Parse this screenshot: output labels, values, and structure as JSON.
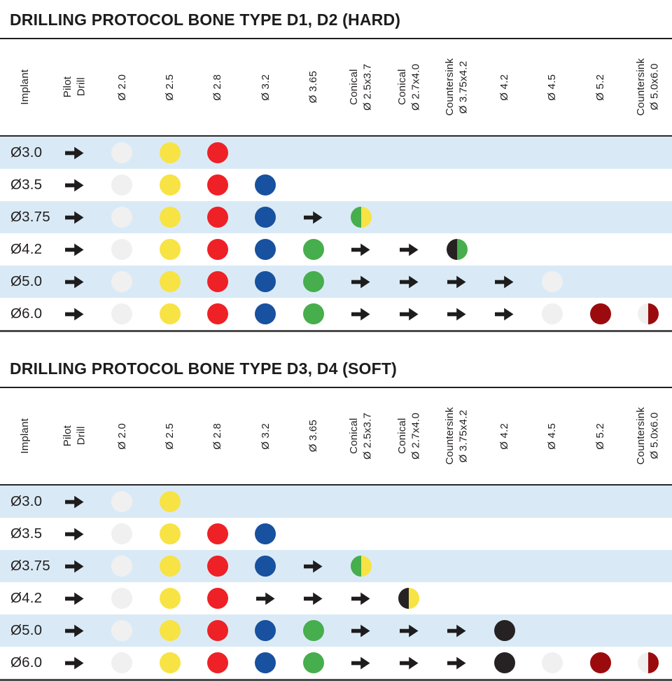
{
  "tables": [
    {
      "id": "hard",
      "title": "DRILLING PROTOCOL BONE TYPE D1, D2 (HARD)",
      "columns": [
        "Implant",
        "Pilot\nDrill",
        "Ø 2.0",
        "Ø 2.5",
        "Ø 2.8",
        "Ø 3.2",
        "Ø 3.65",
        "Conical\nØ 2.5x3.7",
        "Conical\nØ 2.7x4.0",
        "Countersink\nØ 3.75x4.2",
        "Ø 4.2",
        "Ø 4.5",
        "Ø 5.2",
        "Countersink\nØ 5.0x6.0"
      ],
      "rows": [
        {
          "implant": "Ø3.0",
          "cells": [
            "arrow",
            "white",
            "yellow",
            "red",
            "",
            "",
            "",
            "",
            "",
            "",
            "",
            "",
            ""
          ]
        },
        {
          "implant": "Ø3.5",
          "cells": [
            "arrow",
            "white",
            "yellow",
            "red",
            "blue",
            "",
            "",
            "",
            "",
            "",
            "",
            "",
            ""
          ]
        },
        {
          "implant": "Ø3.75",
          "cells": [
            "arrow",
            "white",
            "yellow",
            "red",
            "blue",
            "arrow",
            "green/yellow",
            "",
            "",
            "",
            "",
            "",
            ""
          ]
        },
        {
          "implant": "Ø4.2",
          "cells": [
            "arrow",
            "white",
            "yellow",
            "red",
            "blue",
            "green",
            "arrow",
            "arrow",
            "black/green",
            "",
            "",
            "",
            ""
          ]
        },
        {
          "implant": "Ø5.0",
          "cells": [
            "arrow",
            "white",
            "yellow",
            "red",
            "blue",
            "green",
            "arrow",
            "arrow",
            "arrow",
            "arrow",
            "white",
            "",
            ""
          ]
        },
        {
          "implant": "Ø6.0",
          "cells": [
            "arrow",
            "white",
            "yellow",
            "red",
            "blue",
            "green",
            "arrow",
            "arrow",
            "arrow",
            "arrow",
            "white",
            "darkred",
            "white/darkred"
          ]
        }
      ]
    },
    {
      "id": "soft",
      "title": "DRILLING PROTOCOL BONE TYPE D3, D4 (SOFT)",
      "columns": [
        "Implant",
        "Pilot\nDrill",
        "Ø 2.0",
        "Ø 2.5",
        "Ø 2.8",
        "Ø 3.2",
        "Ø 3.65",
        "Conical\nØ 2.5x3.7",
        "Conical\nØ 2.7x4.0",
        "Countersink\nØ 3.75x4.2",
        "Ø 4.2",
        "Ø 4.5",
        "Ø 5.2",
        "Countersink\nØ 5.0x6.0"
      ],
      "rows": [
        {
          "implant": "Ø3.0",
          "cells": [
            "arrow",
            "white",
            "yellow",
            "",
            "",
            "",
            "",
            "",
            "",
            "",
            "",
            "",
            ""
          ]
        },
        {
          "implant": "Ø3.5",
          "cells": [
            "arrow",
            "white",
            "yellow",
            "red",
            "blue",
            "",
            "",
            "",
            "",
            "",
            "",
            "",
            ""
          ]
        },
        {
          "implant": "Ø3.75",
          "cells": [
            "arrow",
            "white",
            "yellow",
            "red",
            "blue",
            "arrow",
            "green/yellow",
            "",
            "",
            "",
            "",
            "",
            ""
          ]
        },
        {
          "implant": "Ø4.2",
          "cells": [
            "arrow",
            "white",
            "yellow",
            "red",
            "arrow",
            "arrow",
            "arrow",
            "black/yellow",
            "",
            "",
            "",
            "",
            ""
          ]
        },
        {
          "implant": "Ø5.0",
          "cells": [
            "arrow",
            "white",
            "yellow",
            "red",
            "blue",
            "green",
            "arrow",
            "arrow",
            "arrow",
            "black",
            "",
            "",
            ""
          ]
        },
        {
          "implant": "Ø6.0",
          "cells": [
            "arrow",
            "white",
            "yellow",
            "red",
            "blue",
            "green",
            "arrow",
            "arrow",
            "arrow",
            "black",
            "white",
            "darkred",
            "white/darkred"
          ]
        }
      ]
    }
  ],
  "colors": {
    "white": "#F0F0F0",
    "yellow": "#F7E344",
    "red": "#EE2126",
    "blue": "#1751A0",
    "green": "#46AE4C",
    "black": "#262223",
    "darkred": "#9B0B0E",
    "row_alt": "#D9EAF6",
    "arrow": "#1E1C1D",
    "text": "#231F20"
  }
}
